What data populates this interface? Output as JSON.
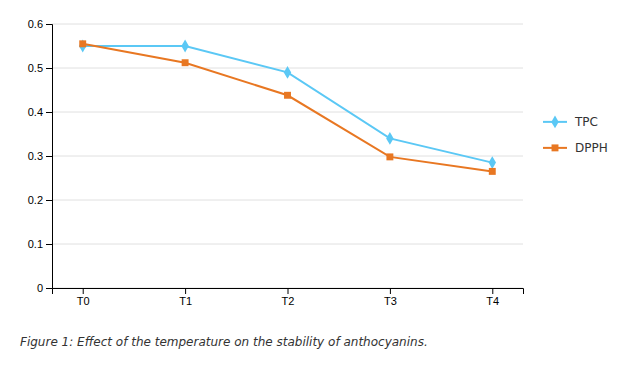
{
  "chart_data": {
    "type": "line",
    "title": "Figure 1: Effect of the temperature on the stability of anthocyanins.",
    "categories": [
      "T0",
      "T1",
      "T2",
      "T3",
      "T4"
    ],
    "series": [
      {
        "name": "TPC",
        "color": "#5BC8F5",
        "marker": "diamond",
        "values": [
          0.55,
          0.55,
          0.49,
          0.34,
          0.285
        ]
      },
      {
        "name": "DPPH",
        "color": "#E87722",
        "marker": "square",
        "values": [
          0.555,
          0.512,
          0.438,
          0.298,
          0.265
        ]
      }
    ],
    "ylim": [
      0,
      0.6
    ],
    "yticks": [
      0,
      0.1,
      0.2,
      0.3,
      0.4,
      0.5,
      0.6
    ],
    "grid": true,
    "legend": "right"
  }
}
